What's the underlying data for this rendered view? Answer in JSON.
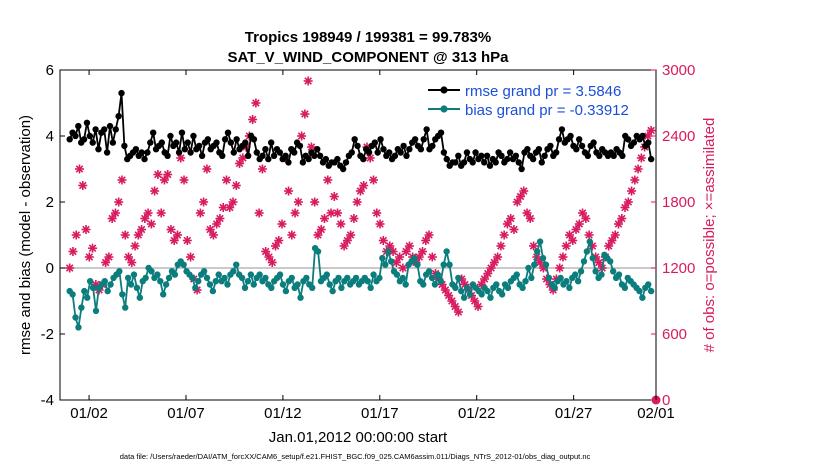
{
  "chart_data": {
    "type": "line",
    "title": "Tropics 198949 / 199381 = 99.783%",
    "subtitle": "SAT_V_WIND_COMPONENT @ 313 hPa",
    "xlabel": "Jan.01,2012 00:00:00 start",
    "ylabel_left": "rmse and bias (model - observation)",
    "ylabel_right": "# of obs: o=possible; ×=assimilated",
    "footer": "data file: /Users/raeder/DAI/ATM_forcXX/CAM6_setup/f.e21.FHIST_BGC.f09_025.CAM6assim.011/Diags_NTrS_2012-01/obs_diag_output.nc",
    "xlim": [
      0.5,
      31.25
    ],
    "ylim_left": [
      -4,
      6
    ],
    "ylim_right": [
      0,
      3000
    ],
    "x_tick_positions": [
      2,
      7,
      12,
      17,
      22,
      27,
      32
    ],
    "x_tick_labels": [
      "01/02",
      "01/07",
      "01/12",
      "01/17",
      "01/22",
      "01/27",
      "02/01"
    ],
    "y_left_ticks": [
      "-4",
      "-2",
      "0",
      "2",
      "4",
      "6"
    ],
    "y_right_ticks": [
      "0",
      "600",
      "1200",
      "1800",
      "2400",
      "3000"
    ],
    "grid": false,
    "legend_position": "top-right",
    "colors": {
      "rmse": "#000000",
      "bias": "#0b7d7d",
      "obs": "#d81b60",
      "zero_line": "#aaaaaa",
      "legend_text": "#1b4fd8"
    },
    "series": [
      {
        "name": "rmse grand pr = 3.5846",
        "axis": "left",
        "values": [
          3.9,
          4.1,
          4.0,
          4.3,
          3.8,
          3.9,
          4.4,
          4.0,
          3.8,
          4.2,
          3.6,
          4.1,
          4.2,
          3.5,
          4.3,
          3.8,
          4.2,
          4.6,
          5.3,
          3.7,
          3.3,
          3.4,
          3.5,
          3.6,
          3.4,
          3.5,
          3.3,
          3.5,
          3.8,
          4.1,
          3.6,
          3.7,
          3.8,
          3.5,
          3.4,
          4.0,
          3.7,
          3.8,
          3.5,
          4.1,
          3.6,
          3.8,
          3.5,
          4.0,
          3.6,
          3.7,
          3.4,
          3.8,
          3.9,
          3.6,
          3.7,
          3.8,
          3.5,
          3.4,
          3.9,
          4.1,
          3.8,
          3.5,
          3.9,
          3.6,
          3.7,
          3.8,
          3.4,
          4.0,
          3.9,
          3.5,
          3.3,
          3.4,
          3.6,
          3.3,
          3.8,
          3.4,
          3.6,
          3.5,
          3.3,
          3.4,
          3.2,
          3.6,
          3.5,
          3.8,
          3.7,
          3.2,
          3.4,
          3.3,
          3.5,
          3.4,
          3.6,
          3.4,
          3.2,
          3.3,
          3.1,
          3.2,
          3.2,
          3.3,
          3.1,
          3.0,
          3.2,
          3.4,
          3.5,
          3.9,
          3.7,
          3.4,
          3.3,
          3.6,
          3.5,
          3.7,
          3.8,
          3.5,
          3.9,
          3.6,
          3.4,
          3.5,
          3.3,
          3.4,
          3.6,
          3.5,
          3.7,
          3.4,
          3.6,
          3.8,
          3.9,
          3.7,
          3.6,
          3.9,
          4.2,
          3.6,
          3.7,
          3.9,
          4.0,
          4.1,
          3.5,
          3.3,
          3.1,
          3.2,
          3.2,
          3.4,
          3.1,
          3.2,
          3.5,
          3.3,
          3.2,
          3.5,
          3.3,
          3.4,
          3.2,
          3.4,
          3.1,
          3.3,
          3.2,
          3.5,
          3.4,
          3.2,
          3.3,
          3.5,
          3.3,
          3.4,
          3.2,
          3.0,
          3.5,
          3.6,
          3.4,
          3.3,
          3.5,
          3.6,
          3.2,
          3.4,
          3.6,
          3.7,
          3.4,
          3.5,
          3.9,
          4.2,
          3.8,
          3.9,
          4.0,
          3.7,
          3.6,
          3.9,
          3.7,
          3.5,
          3.4,
          3.7,
          3.8,
          3.5,
          3.4,
          3.6,
          3.5,
          3.4,
          3.5,
          3.4,
          3.6,
          3.5,
          3.4,
          4.0,
          3.9,
          3.7,
          3.8,
          4.0,
          3.9,
          4.0,
          3.7,
          3.8,
          3.3
        ]
      },
      {
        "name": "bias grand pr = -0.33912",
        "axis": "left",
        "values": [
          -0.7,
          -0.8,
          -1.5,
          -1.8,
          -1.2,
          -0.7,
          -0.9,
          -0.4,
          -0.6,
          -1.3,
          -0.6,
          -0.5,
          -0.4,
          -0.7,
          -0.5,
          -0.3,
          -0.2,
          -0.1,
          -0.8,
          -1.2,
          -0.3,
          -0.5,
          -0.2,
          -0.6,
          -0.9,
          -0.4,
          -0.3,
          0.0,
          -0.1,
          -0.3,
          -0.2,
          -0.4,
          -0.8,
          -0.5,
          -0.3,
          -0.1,
          -0.2,
          0.1,
          0.2,
          0.1,
          -0.1,
          -0.2,
          -0.3,
          -0.6,
          -0.4,
          -0.2,
          -0.1,
          -0.3,
          -0.5,
          -0.7,
          -0.4,
          -0.2,
          -0.4,
          -0.3,
          -0.5,
          -0.2,
          -0.1,
          0.1,
          -0.2,
          -0.3,
          -0.6,
          -0.4,
          -0.2,
          -0.5,
          -0.3,
          -0.2,
          -0.4,
          -0.3,
          -0.5,
          -0.6,
          -0.4,
          -0.3,
          -0.2,
          -0.5,
          -0.7,
          -0.4,
          -0.3,
          -0.6,
          -0.5,
          -0.9,
          -0.4,
          -0.3,
          -0.5,
          -0.6,
          0.6,
          0.5,
          -0.4,
          -0.3,
          -0.2,
          -0.5,
          -0.7,
          -0.4,
          -0.3,
          -0.6,
          -0.4,
          -0.3,
          -0.5,
          -0.4,
          -0.3,
          -0.5,
          -0.4,
          -0.3,
          -0.4,
          -0.6,
          -0.2,
          -0.4,
          -0.3,
          0.3,
          0.1,
          0.5,
          0.2,
          -0.1,
          -0.2,
          -0.4,
          -0.3,
          -0.5,
          0.1,
          0.2,
          0.3,
          0.1,
          -0.4,
          -0.5,
          -0.2,
          -0.1,
          -0.3,
          -0.5,
          -0.2,
          -0.4,
          0.1,
          0.5,
          0.1,
          -0.5,
          -0.6,
          -0.3,
          -0.7,
          -0.9,
          -0.6,
          -0.8,
          -0.5,
          -0.6,
          -0.7,
          -0.8,
          -0.6,
          -0.7,
          -0.9,
          -0.6,
          -0.5,
          -0.7,
          -0.8,
          -0.5,
          -0.6,
          -0.4,
          -0.3,
          -0.2,
          -0.5,
          -0.6,
          -0.4,
          0.0,
          -0.3,
          0.1,
          0.5,
          0.8,
          0.3,
          0.1,
          -0.3,
          -0.5,
          -0.6,
          -0.4,
          -0.3,
          -0.5,
          -0.4,
          -0.6,
          -0.3,
          -0.2,
          -0.4,
          -0.1,
          0.2,
          0.5,
          0.8,
          0.3,
          -0.1,
          -0.3,
          -0.2,
          0.4,
          0.3,
          0.2,
          -0.1,
          -0.3,
          -0.2,
          -0.5,
          -0.6,
          -0.3,
          -0.4,
          -0.5,
          -0.6,
          -0.7,
          -0.9,
          -0.6,
          -0.5,
          -0.7
        ]
      },
      {
        "name": "# of obs assimilated",
        "axis": "right",
        "marker": "asterisk",
        "values": [
          1200,
          1350,
          1500,
          2100,
          1950,
          1550,
          1300,
          1380,
          1050,
          1000,
          1050,
          1250,
          1300,
          1650,
          1700,
          1800,
          2000,
          1500,
          1300,
          1250,
          1400,
          1500,
          1550,
          1650,
          1700,
          1600,
          1900,
          2050,
          1700,
          2000,
          2050,
          1550,
          1450,
          1500,
          2200,
          2000,
          1450,
          1300,
          1100,
          1000,
          1700,
          1800,
          2100,
          1550,
          1500,
          1600,
          1650,
          1750,
          2000,
          1750,
          1800,
          1950,
          2150,
          2200,
          2300,
          2400,
          2550,
          2700,
          1700,
          2100,
          1350,
          1300,
          1250,
          1400,
          1450,
          1600,
          2200,
          1900,
          1500,
          1700,
          1800,
          2400,
          2600,
          2900,
          2300,
          1800,
          1500,
          1550,
          1650,
          2000,
          1700,
          1850,
          1700,
          1600,
          1400,
          1450,
          1500,
          1650,
          1800,
          1900,
          1950,
          2300,
          2200,
          2000,
          1700,
          1600,
          1450,
          1350,
          1400,
          1350,
          1250,
          1300,
          1200,
          1350,
          1400,
          1300,
          1250,
          1300,
          1350,
          1450,
          1500,
          1300,
          1150,
          1100,
          1050,
          1000,
          950,
          900,
          850,
          800,
          1100,
          1050,
          1000,
          950,
          900,
          850,
          1050,
          1100,
          1150,
          1200,
          1250,
          1300,
          1400,
          1500,
          1600,
          1650,
          1550,
          1800,
          1850,
          1900,
          1700,
          1650,
          1400,
          1300,
          1250,
          1200,
          1100,
          1050,
          1000,
          1100,
          1200,
          1300,
          1400,
          1500,
          1450,
          1550,
          1600,
          1700,
          1650,
          1500,
          1400,
          1300,
          1250,
          1200,
          1300,
          1400,
          1450,
          1500,
          1600,
          1650,
          1750,
          1800,
          1900,
          2000,
          2100,
          2200,
          2300,
          2400,
          2450
        ]
      }
    ]
  }
}
